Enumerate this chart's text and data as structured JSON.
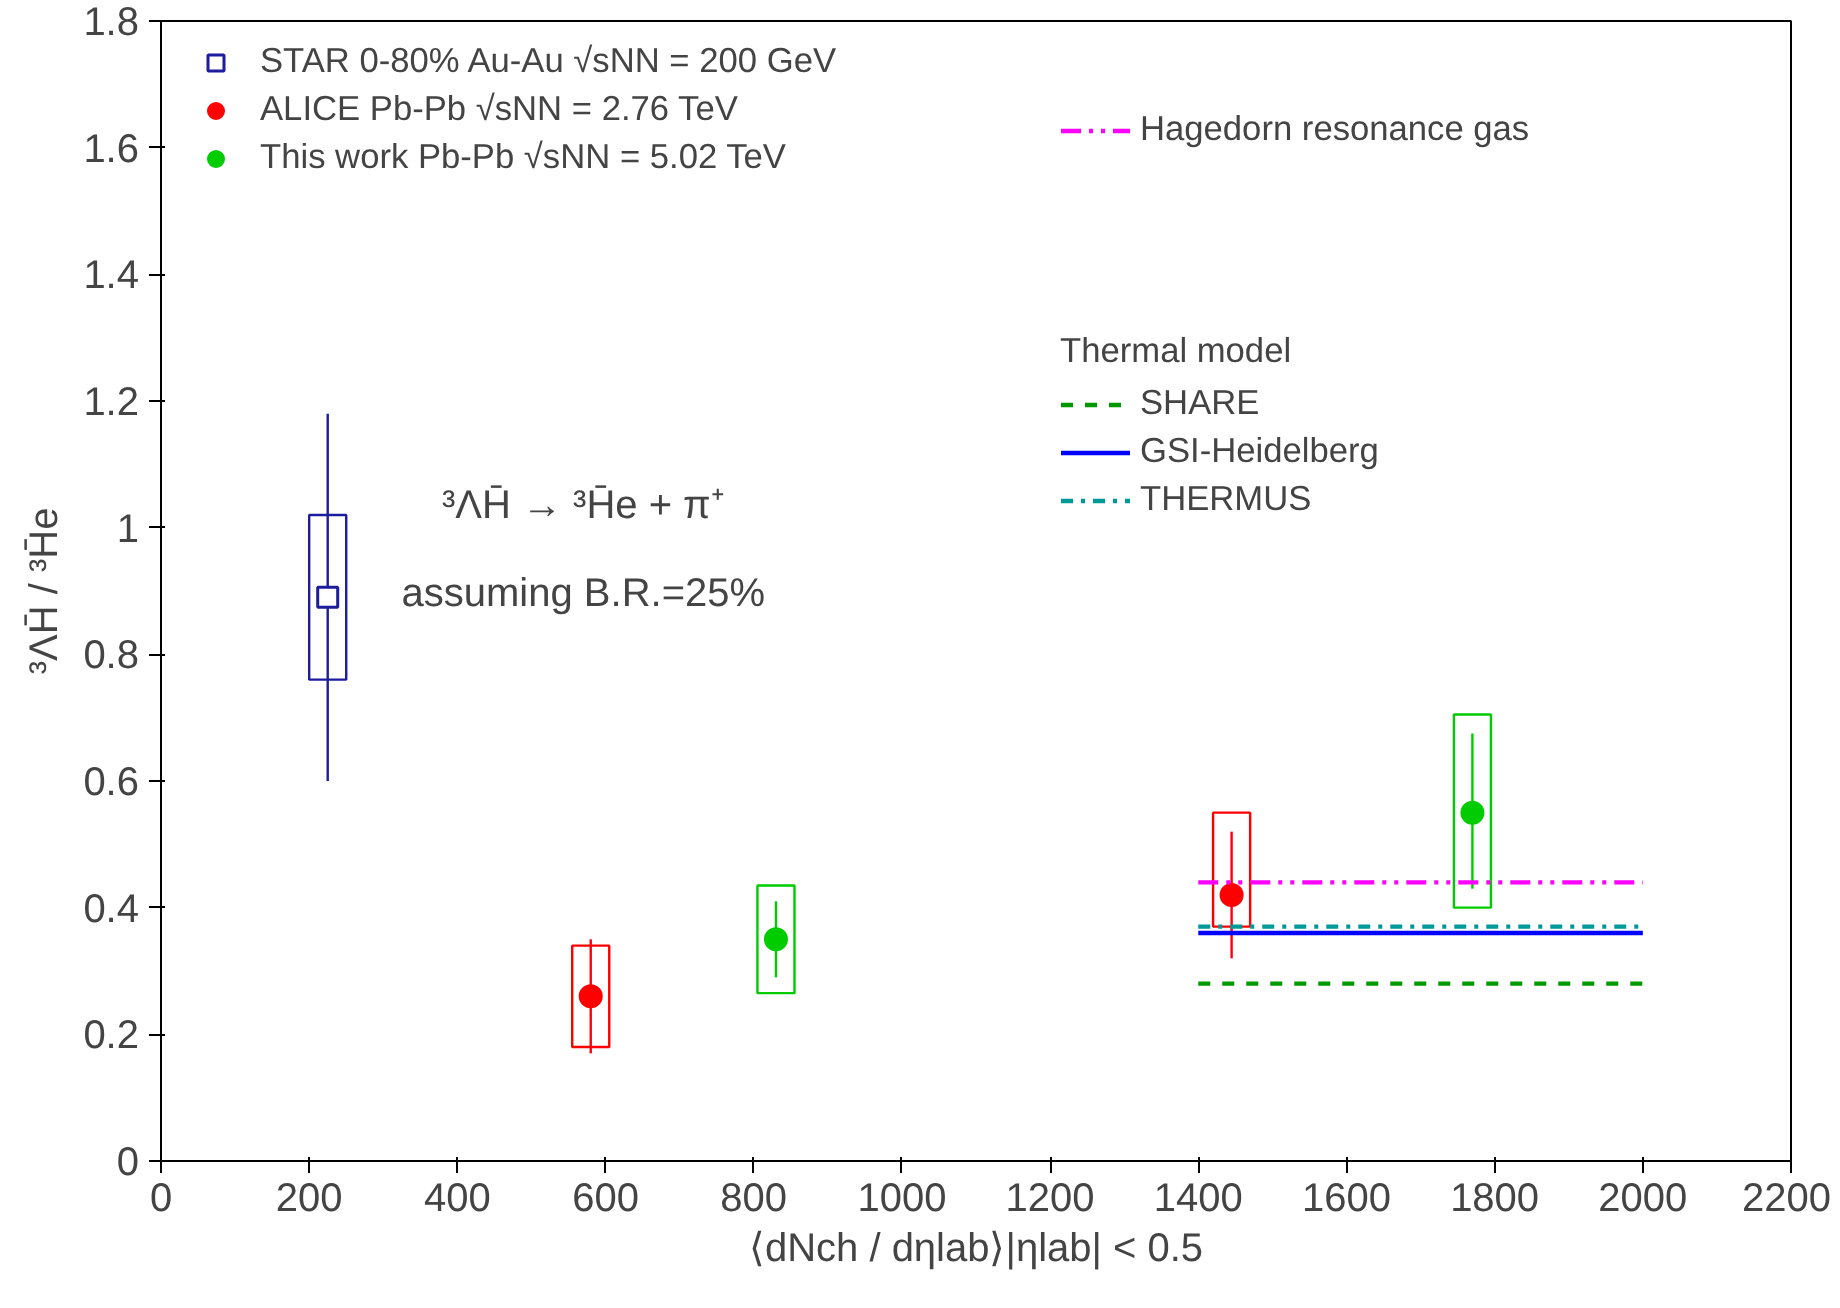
{
  "chart_data": {
    "type": "scatter",
    "xlabel": "⟨dNch / dηlab⟩|ηlab| < 0.5",
    "ylabel": "³ΛH̄ / ³H̄e",
    "xlim": [
      0,
      2200
    ],
    "ylim": [
      0,
      1.8
    ],
    "xticks": [
      0,
      200,
      400,
      600,
      800,
      1000,
      1200,
      1400,
      1600,
      1800,
      2000,
      2200
    ],
    "yticks": [
      0,
      0.2,
      0.4,
      0.6,
      0.8,
      1,
      1.2,
      1.4,
      1.6,
      1.8
    ],
    "grid": false,
    "legend": "top left",
    "legend_title": "Thermal model",
    "annotations": [
      "³ΛH̄ → ³H̄e + π⁺",
      "assuming B.R.=25%"
    ],
    "series": [
      {
        "type": "bar",
        "color": "#1c1c9c",
        "x": [
          225
        ],
        "base": [
          0.76
        ],
        "values": [
          0.26
        ]
      },
      {
        "type": "bar",
        "color": "#ff0000",
        "x": [
          580,
          1445
        ],
        "base": [
          0.18,
          0.37
        ],
        "values": [
          0.16,
          0.18
        ]
      },
      {
        "type": "bar",
        "color": "#00cc00",
        "x": [
          830,
          1770
        ],
        "base": [
          0.265,
          0.4
        ],
        "values": [
          0.17,
          0.305
        ]
      },
      {
        "name": "STAR 0-80% Au-Au √sNN = 200 GeV",
        "color": "#1c1c9c",
        "marker": "square",
        "x": [
          225
        ],
        "values": [
          0.89
        ],
        "errors": [
          [
            0.6,
            1.18
          ]
        ]
      },
      {
        "name": "ALICE Pb-Pb √sNN = 2.76 TeV",
        "color": "#ff0000",
        "marker": "circle",
        "x": [
          580,
          1445
        ],
        "values": [
          0.26,
          0.42
        ],
        "errors": [
          [
            0.17,
            0.35
          ],
          [
            0.32,
            0.52
          ]
        ]
      },
      {
        "name": "This work Pb-Pb √sNN = 5.02 TeV",
        "color": "#00cc00",
        "marker": "circle",
        "x": [
          830,
          1770
        ],
        "values": [
          0.35,
          0.55
        ],
        "errors": [
          [
            0.29,
            0.41
          ],
          [
            0.43,
            0.675
          ]
        ]
      },
      {
        "type": "line",
        "name": "Hagedorn resonance gas",
        "color": "#ff00ff",
        "line_style": "dashdotdot",
        "x": [
          1400,
          2000
        ],
        "values": [
          0.44,
          0.44
        ]
      },
      {
        "type": "line",
        "name": "SHARE",
        "color": "#009900",
        "line_style": "dashed",
        "x": [
          1400,
          2000
        ],
        "values": [
          0.28,
          0.28
        ]
      },
      {
        "type": "line",
        "name": "GSI-Heidelberg",
        "color": "#0000ff",
        "line_style": "solid",
        "x": [
          1400,
          2000
        ],
        "values": [
          0.36,
          0.36
        ]
      },
      {
        "type": "line",
        "name": "THERMUS",
        "color": "#009999",
        "line_style": "dashdot",
        "x": [
          1400,
          2000
        ],
        "values": [
          0.37,
          0.37
        ]
      }
    ]
  }
}
